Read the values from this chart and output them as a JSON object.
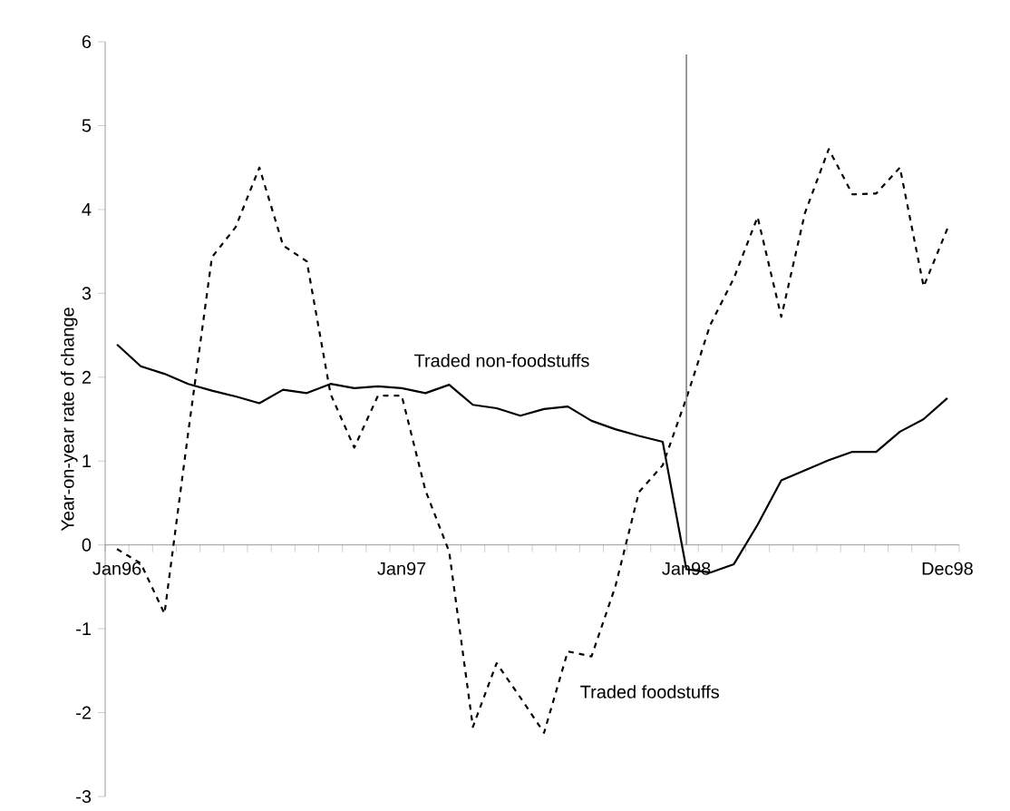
{
  "chart_data": {
    "type": "line",
    "ylabel": "Year-on-year rate of change",
    "categories": [
      "Jan96",
      null,
      null,
      null,
      null,
      null,
      null,
      null,
      null,
      null,
      null,
      null,
      "Jan97",
      null,
      null,
      null,
      null,
      null,
      null,
      null,
      null,
      null,
      null,
      null,
      "Jan98",
      null,
      null,
      null,
      null,
      null,
      null,
      null,
      null,
      null,
      null,
      "Dec98"
    ],
    "series": [
      {
        "name": "Traded non-foodstuffs",
        "color": "#000000",
        "line_style": "solid",
        "values": [
          2.39,
          2.13,
          2.04,
          1.92,
          1.84,
          1.77,
          1.69,
          1.85,
          1.81,
          1.92,
          1.87,
          1.89,
          1.87,
          1.81,
          1.91,
          1.67,
          1.63,
          1.54,
          1.62,
          1.65,
          1.48,
          1.38,
          1.3,
          1.23,
          -0.29,
          -0.33,
          -0.23,
          0.24,
          0.77,
          0.89,
          1.01,
          1.11,
          1.11,
          1.35,
          1.5,
          1.75
        ]
      },
      {
        "name": "Traded foodstuffs",
        "color": "#000000",
        "line_style": "dashed",
        "values": [
          -0.05,
          -0.22,
          -0.82,
          1.34,
          3.43,
          3.79,
          4.5,
          3.57,
          3.38,
          1.8,
          1.16,
          1.78,
          1.78,
          0.65,
          -0.08,
          -2.17,
          -1.41,
          -1.82,
          -2.24,
          -1.27,
          -1.33,
          -0.5,
          0.63,
          0.95,
          1.75,
          2.62,
          3.18,
          3.91,
          2.72,
          3.96,
          4.72,
          4.18,
          4.19,
          4.5,
          3.08,
          3.77
        ]
      }
    ],
    "ylim": [
      -3,
      6
    ],
    "yticks": [
      -3,
      -2,
      -1,
      0,
      1,
      2,
      3,
      4,
      5,
      6
    ],
    "ref_lines": [
      {
        "axis": "x",
        "value": "Jan98",
        "color": "#808080"
      }
    ],
    "legend": false,
    "grid": false
  }
}
